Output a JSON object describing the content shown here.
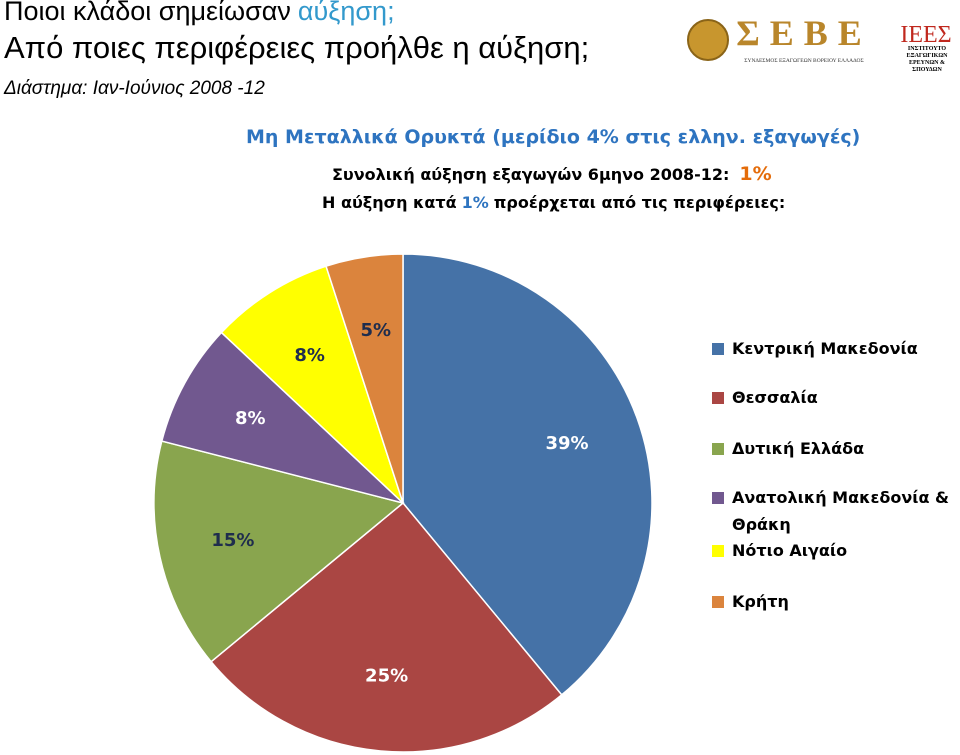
{
  "header": {
    "title_start": "Ποιοι κλάδοι σημείωσαν",
    "title_highlight": "αύξηση;",
    "subtitle": "Από ποιες περιφέρειες προήλθε η αύξηση;",
    "period": "Διάστημα: Ιαν-Ιούνιος 2008 -12"
  },
  "logos": {
    "seve": "ΣΕΒΕ",
    "seve_caption": "ΣΥΝΔΕΣΜΟΣ ΕΞΑΓΩΓΕΩΝ ΒΟΡΕΙΟΥ ΕΛΛΑΔΟΣ",
    "iees": "ΙΕΕΣ",
    "iees_caption": "ΙΝΣΤΙΤΟΥΤΟ ΕΞΑΓΩΓΙΚΩΝ ΕΡΕΥΝΩΝ & ΣΠΟΥΔΩΝ"
  },
  "chart_data": {
    "type": "pie",
    "title": "Μη Μεταλλικά Ορυκτά (μερίδιο 4% στις ελλην. εξαγωγές)",
    "subtitle_text": "Συνολική αύξηση εξαγωγών 6μηνο 2008-12:",
    "subtitle_value": "1%",
    "note_start": "Η αύξηση κατά",
    "note_value": "1%",
    "note_end": "προέρχεται από τις περιφέρειες:",
    "categories": [
      "Κεντρική Μακεδονία",
      "Θεσσαλία",
      "Δυτική Ελλάδα",
      "Ανατολική Μακεδονία & Θράκη",
      "Νότιο Αιγαίο",
      "Κρήτη"
    ],
    "values": [
      39,
      25,
      15,
      8,
      8,
      5
    ],
    "value_labels": [
      "39%",
      "25%",
      "15%",
      "8%",
      "8%",
      "5%"
    ],
    "colors": [
      "#4572a7",
      "#aa4643",
      "#89a54e",
      "#71588f",
      "#ffff00",
      "#db843d"
    ],
    "legend": "right"
  }
}
